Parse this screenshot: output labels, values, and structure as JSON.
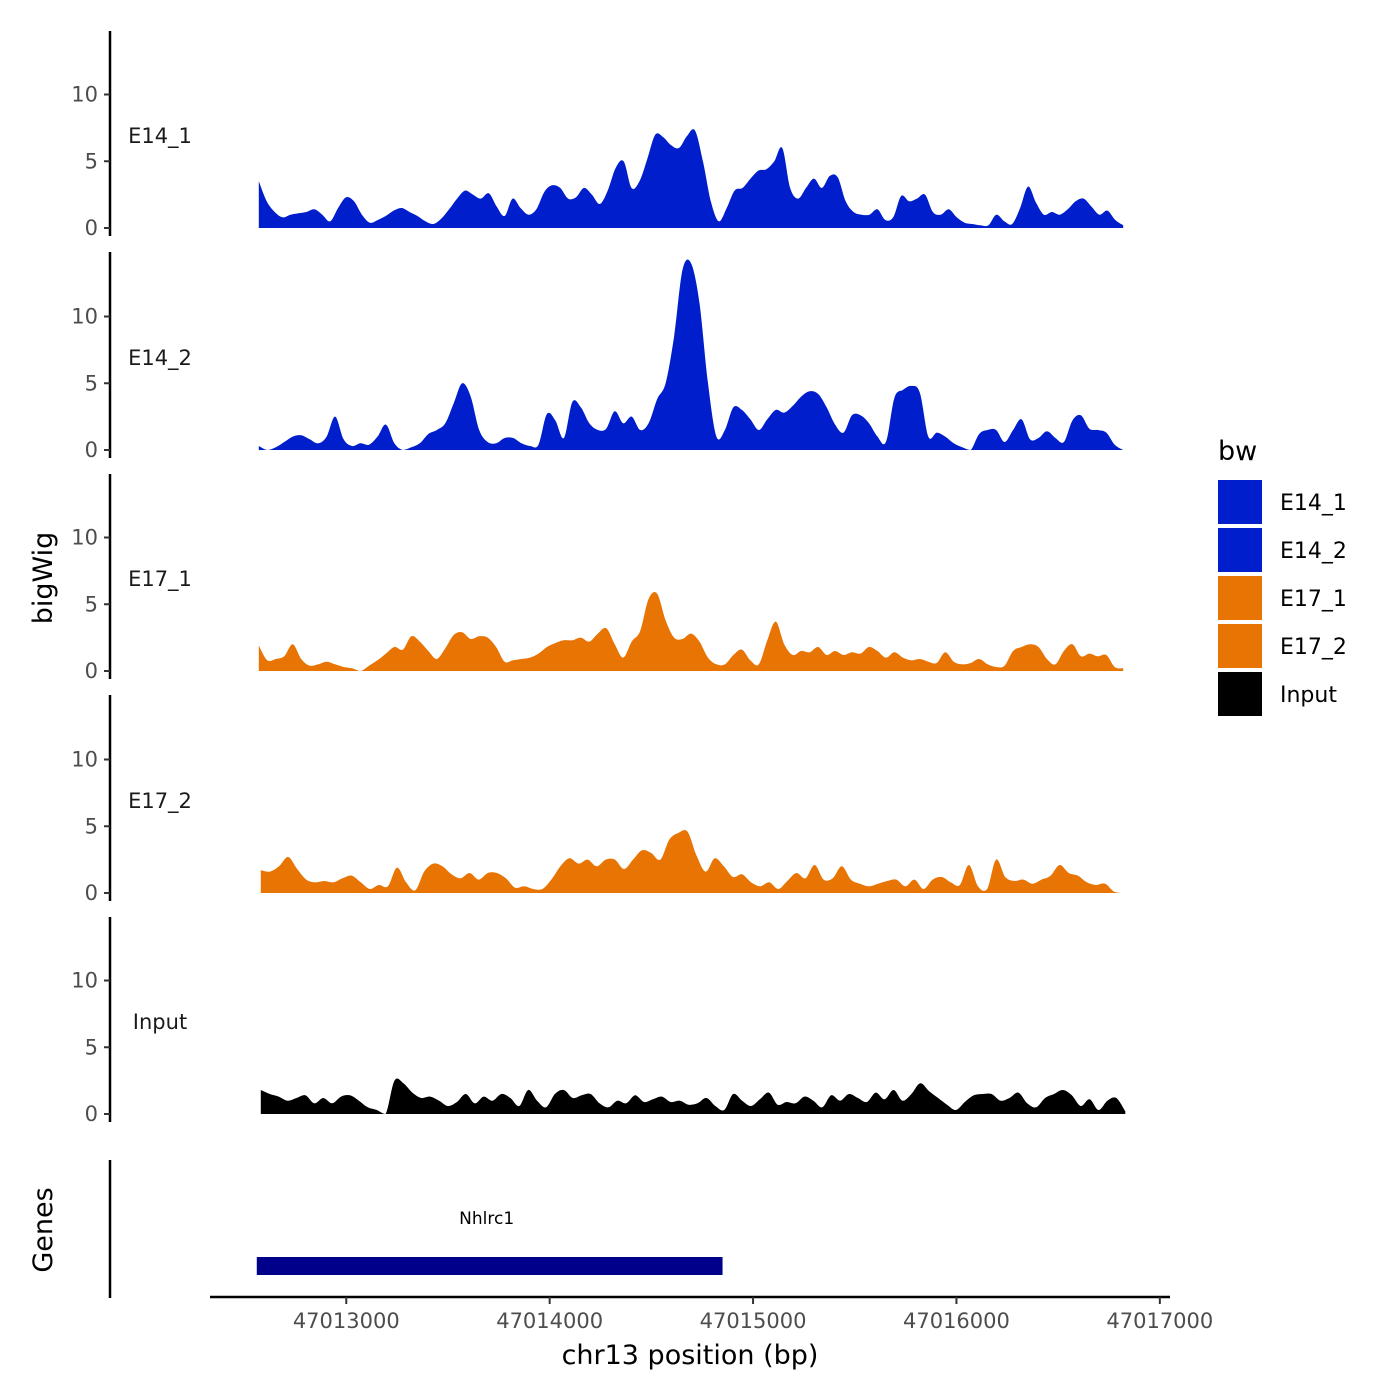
{
  "chart_data": {
    "type": "area",
    "title": "",
    "xlabel": "chr13 position (bp)",
    "ylabel": "bigWig",
    "genes_label": "Genes",
    "x_range": [
      47012330,
      47017050
    ],
    "ylim": [
      0,
      14.5
    ],
    "y_ticks": [
      0,
      5,
      10
    ],
    "x_ticks": [
      47013000,
      47014000,
      47015000,
      47016000,
      47017000
    ],
    "x_tick_labels": [
      "47013000",
      "47014000",
      "47015000",
      "47016000",
      "47017000"
    ],
    "legend": {
      "title": "bw",
      "entries": [
        {
          "name": "E14_1",
          "color": "#001ECB"
        },
        {
          "name": "E14_2",
          "color": "#001ECB"
        },
        {
          "name": "E17_1",
          "color": "#E87404"
        },
        {
          "name": "E17_2",
          "color": "#E87404"
        },
        {
          "name": "Input",
          "color": "#000000"
        }
      ]
    },
    "series": [
      {
        "name": "E14_1",
        "color": "#001ECB",
        "x_start": 47012570,
        "x_end": 47016820,
        "values": [
          3.5,
          2.0,
          1.2,
          0.8,
          1.0,
          1.1,
          1.2,
          1.4,
          1.0,
          0.5,
          1.5,
          2.3,
          2.0,
          1.0,
          0.4,
          0.6,
          0.9,
          1.3,
          1.5,
          1.2,
          0.9,
          0.5,
          0.3,
          0.7,
          1.4,
          2.2,
          2.8,
          2.5,
          2.2,
          2.6,
          1.6,
          0.9,
          2.2,
          1.5,
          1.0,
          1.4,
          2.7,
          3.2,
          3.0,
          2.2,
          2.3,
          3.0,
          2.5,
          1.8,
          2.8,
          4.5,
          5.0,
          3.0,
          3.5,
          5.2,
          7.0,
          6.8,
          6.2,
          6.0,
          6.9,
          7.3,
          5.0,
          2.0,
          0.5,
          1.5,
          2.8,
          3.0,
          3.7,
          4.3,
          4.4,
          5.0,
          6.0,
          3.0,
          2.2,
          3.0,
          3.7,
          3.0,
          3.9,
          3.8,
          2.0,
          1.2,
          1.0,
          1.0,
          1.4,
          0.6,
          0.8,
          2.4,
          2.0,
          2.2,
          2.5,
          1.2,
          1.0,
          1.4,
          0.8,
          0.4,
          0.3,
          0.2,
          0.2,
          1.0,
          0.5,
          0.3,
          1.5,
          3.1,
          1.9,
          1.0,
          1.2,
          1.0,
          1.4,
          2.0,
          2.2,
          1.6,
          1.0,
          1.3,
          0.6,
          0.2
        ]
      },
      {
        "name": "E14_2",
        "color": "#001ECB",
        "x_start": 47012570,
        "x_end": 47016820,
        "values": [
          0.3,
          0.0,
          0.2,
          0.6,
          1.0,
          1.1,
          0.8,
          0.5,
          1.0,
          2.5,
          0.8,
          0.3,
          0.5,
          0.4,
          1.0,
          1.9,
          0.5,
          0.0,
          0.2,
          0.5,
          1.2,
          1.5,
          2.0,
          3.5,
          5.0,
          4.0,
          1.5,
          0.6,
          0.5,
          0.9,
          0.9,
          0.5,
          0.3,
          0.4,
          2.7,
          2.2,
          0.9,
          3.6,
          3.2,
          2.0,
          1.5,
          1.6,
          2.9,
          2.0,
          2.5,
          1.5,
          2.0,
          3.8,
          5.0,
          8.5,
          13.5,
          14.0,
          11.0,
          5.0,
          1.0,
          1.5,
          3.2,
          3.0,
          2.3,
          1.5,
          2.3,
          3.0,
          2.8,
          3.3,
          4.0,
          4.4,
          4.2,
          3.2,
          1.9,
          1.3,
          2.6,
          2.6,
          2.0,
          1.0,
          0.6,
          3.9,
          4.5,
          4.8,
          4.3,
          1.0,
          1.3,
          1.0,
          0.5,
          0.2,
          0.0,
          1.2,
          1.5,
          1.5,
          0.6,
          1.5,
          2.3,
          0.8,
          0.9,
          1.4,
          0.9,
          0.6,
          2.2,
          2.6,
          1.6,
          1.5,
          1.3,
          0.4,
          0.0
        ]
      },
      {
        "name": "E17_1",
        "color": "#E87404",
        "x_start": 47012570,
        "x_end": 47016820,
        "values": [
          1.9,
          0.8,
          0.9,
          1.1,
          2.0,
          0.9,
          0.4,
          0.5,
          0.7,
          0.5,
          0.3,
          0.2,
          0.0,
          0.4,
          0.8,
          1.3,
          1.8,
          1.6,
          2.6,
          2.2,
          1.5,
          0.9,
          1.7,
          2.7,
          2.9,
          2.4,
          2.6,
          2.5,
          1.8,
          0.7,
          0.8,
          0.9,
          1.0,
          1.3,
          1.8,
          2.1,
          2.3,
          2.3,
          2.5,
          2.2,
          2.8,
          3.2,
          2.0,
          1.0,
          2.2,
          3.0,
          5.4,
          5.8,
          3.8,
          2.5,
          2.4,
          2.8,
          2.2,
          1.0,
          0.5,
          0.5,
          1.2,
          1.6,
          0.8,
          0.5,
          2.3,
          3.7,
          2.0,
          1.2,
          1.5,
          1.4,
          1.8,
          1.2,
          1.5,
          1.2,
          1.4,
          1.3,
          1.8,
          1.5,
          1.0,
          1.4,
          1.0,
          0.8,
          0.9,
          0.7,
          0.6,
          1.4,
          0.7,
          0.5,
          0.6,
          0.9,
          0.5,
          0.3,
          0.4,
          1.5,
          1.8,
          2.0,
          1.8,
          0.9,
          0.5,
          1.5,
          2.0,
          1.1,
          1.3,
          1.1,
          1.2,
          0.3,
          0.2
        ]
      },
      {
        "name": "E17_2",
        "color": "#E87404",
        "x_start": 47012580,
        "x_end": 47016820,
        "values": [
          1.7,
          1.6,
          2.0,
          2.7,
          1.8,
          1.0,
          0.8,
          0.9,
          0.8,
          1.1,
          1.3,
          0.8,
          0.3,
          0.6,
          0.5,
          1.9,
          0.8,
          0.2,
          1.6,
          2.2,
          2.0,
          1.4,
          1.1,
          1.5,
          1.0,
          1.5,
          1.5,
          1.1,
          0.4,
          0.5,
          0.3,
          0.3,
          1.0,
          2.0,
          2.6,
          2.2,
          2.5,
          2.0,
          2.5,
          2.5,
          1.8,
          2.5,
          3.2,
          3.0,
          2.5,
          4.0,
          4.5,
          4.6,
          2.8,
          1.6,
          2.6,
          2.0,
          1.2,
          1.4,
          0.8,
          0.5,
          0.8,
          0.3,
          0.9,
          1.5,
          1.1,
          2.1,
          1.0,
          1.1,
          2.0,
          1.0,
          0.7,
          0.5,
          0.7,
          0.9,
          1.0,
          0.5,
          1.0,
          0.3,
          1.0,
          1.2,
          0.8,
          0.6,
          2.1,
          0.5,
          0.3,
          2.5,
          1.2,
          0.9,
          1.0,
          0.7,
          1.0,
          1.3,
          2.1,
          1.5,
          1.3,
          0.8,
          0.6,
          0.7,
          0.1,
          0.0
        ]
      },
      {
        "name": "Input",
        "color": "#000000",
        "x_start": 47012580,
        "x_end": 47016830,
        "values": [
          1.8,
          1.5,
          1.3,
          1.0,
          1.2,
          1.4,
          0.8,
          1.2,
          0.8,
          1.3,
          1.4,
          1.0,
          0.5,
          0.3,
          0.0,
          2.5,
          2.3,
          1.6,
          1.2,
          1.3,
          1.0,
          0.6,
          0.9,
          1.5,
          0.8,
          1.3,
          1.0,
          1.5,
          1.2,
          0.6,
          1.8,
          1.0,
          0.5,
          1.5,
          1.8,
          1.2,
          1.4,
          1.5,
          0.8,
          0.5,
          1.0,
          0.8,
          1.4,
          0.9,
          1.1,
          1.3,
          0.9,
          1.0,
          0.7,
          0.8,
          1.2,
          0.6,
          0.3,
          1.5,
          1.0,
          0.6,
          1.1,
          1.6,
          0.7,
          0.9,
          0.8,
          1.3,
          1.0,
          0.5,
          1.4,
          1.0,
          1.5,
          1.2,
          0.9,
          1.6,
          1.1,
          1.8,
          1.0,
          1.5,
          2.3,
          1.7,
          1.2,
          0.7,
          0.3,
          0.9,
          1.4,
          1.5,
          1.5,
          1.0,
          1.2,
          1.6,
          0.8,
          0.5,
          1.2,
          1.5,
          1.8,
          1.4,
          0.6,
          1.1,
          0.3,
          1.0,
          1.2,
          0.2
        ]
      }
    ],
    "genes": [
      {
        "name": "Nhlrc1",
        "start": 47012560,
        "end": 47014850,
        "color": "#00008B"
      }
    ]
  }
}
